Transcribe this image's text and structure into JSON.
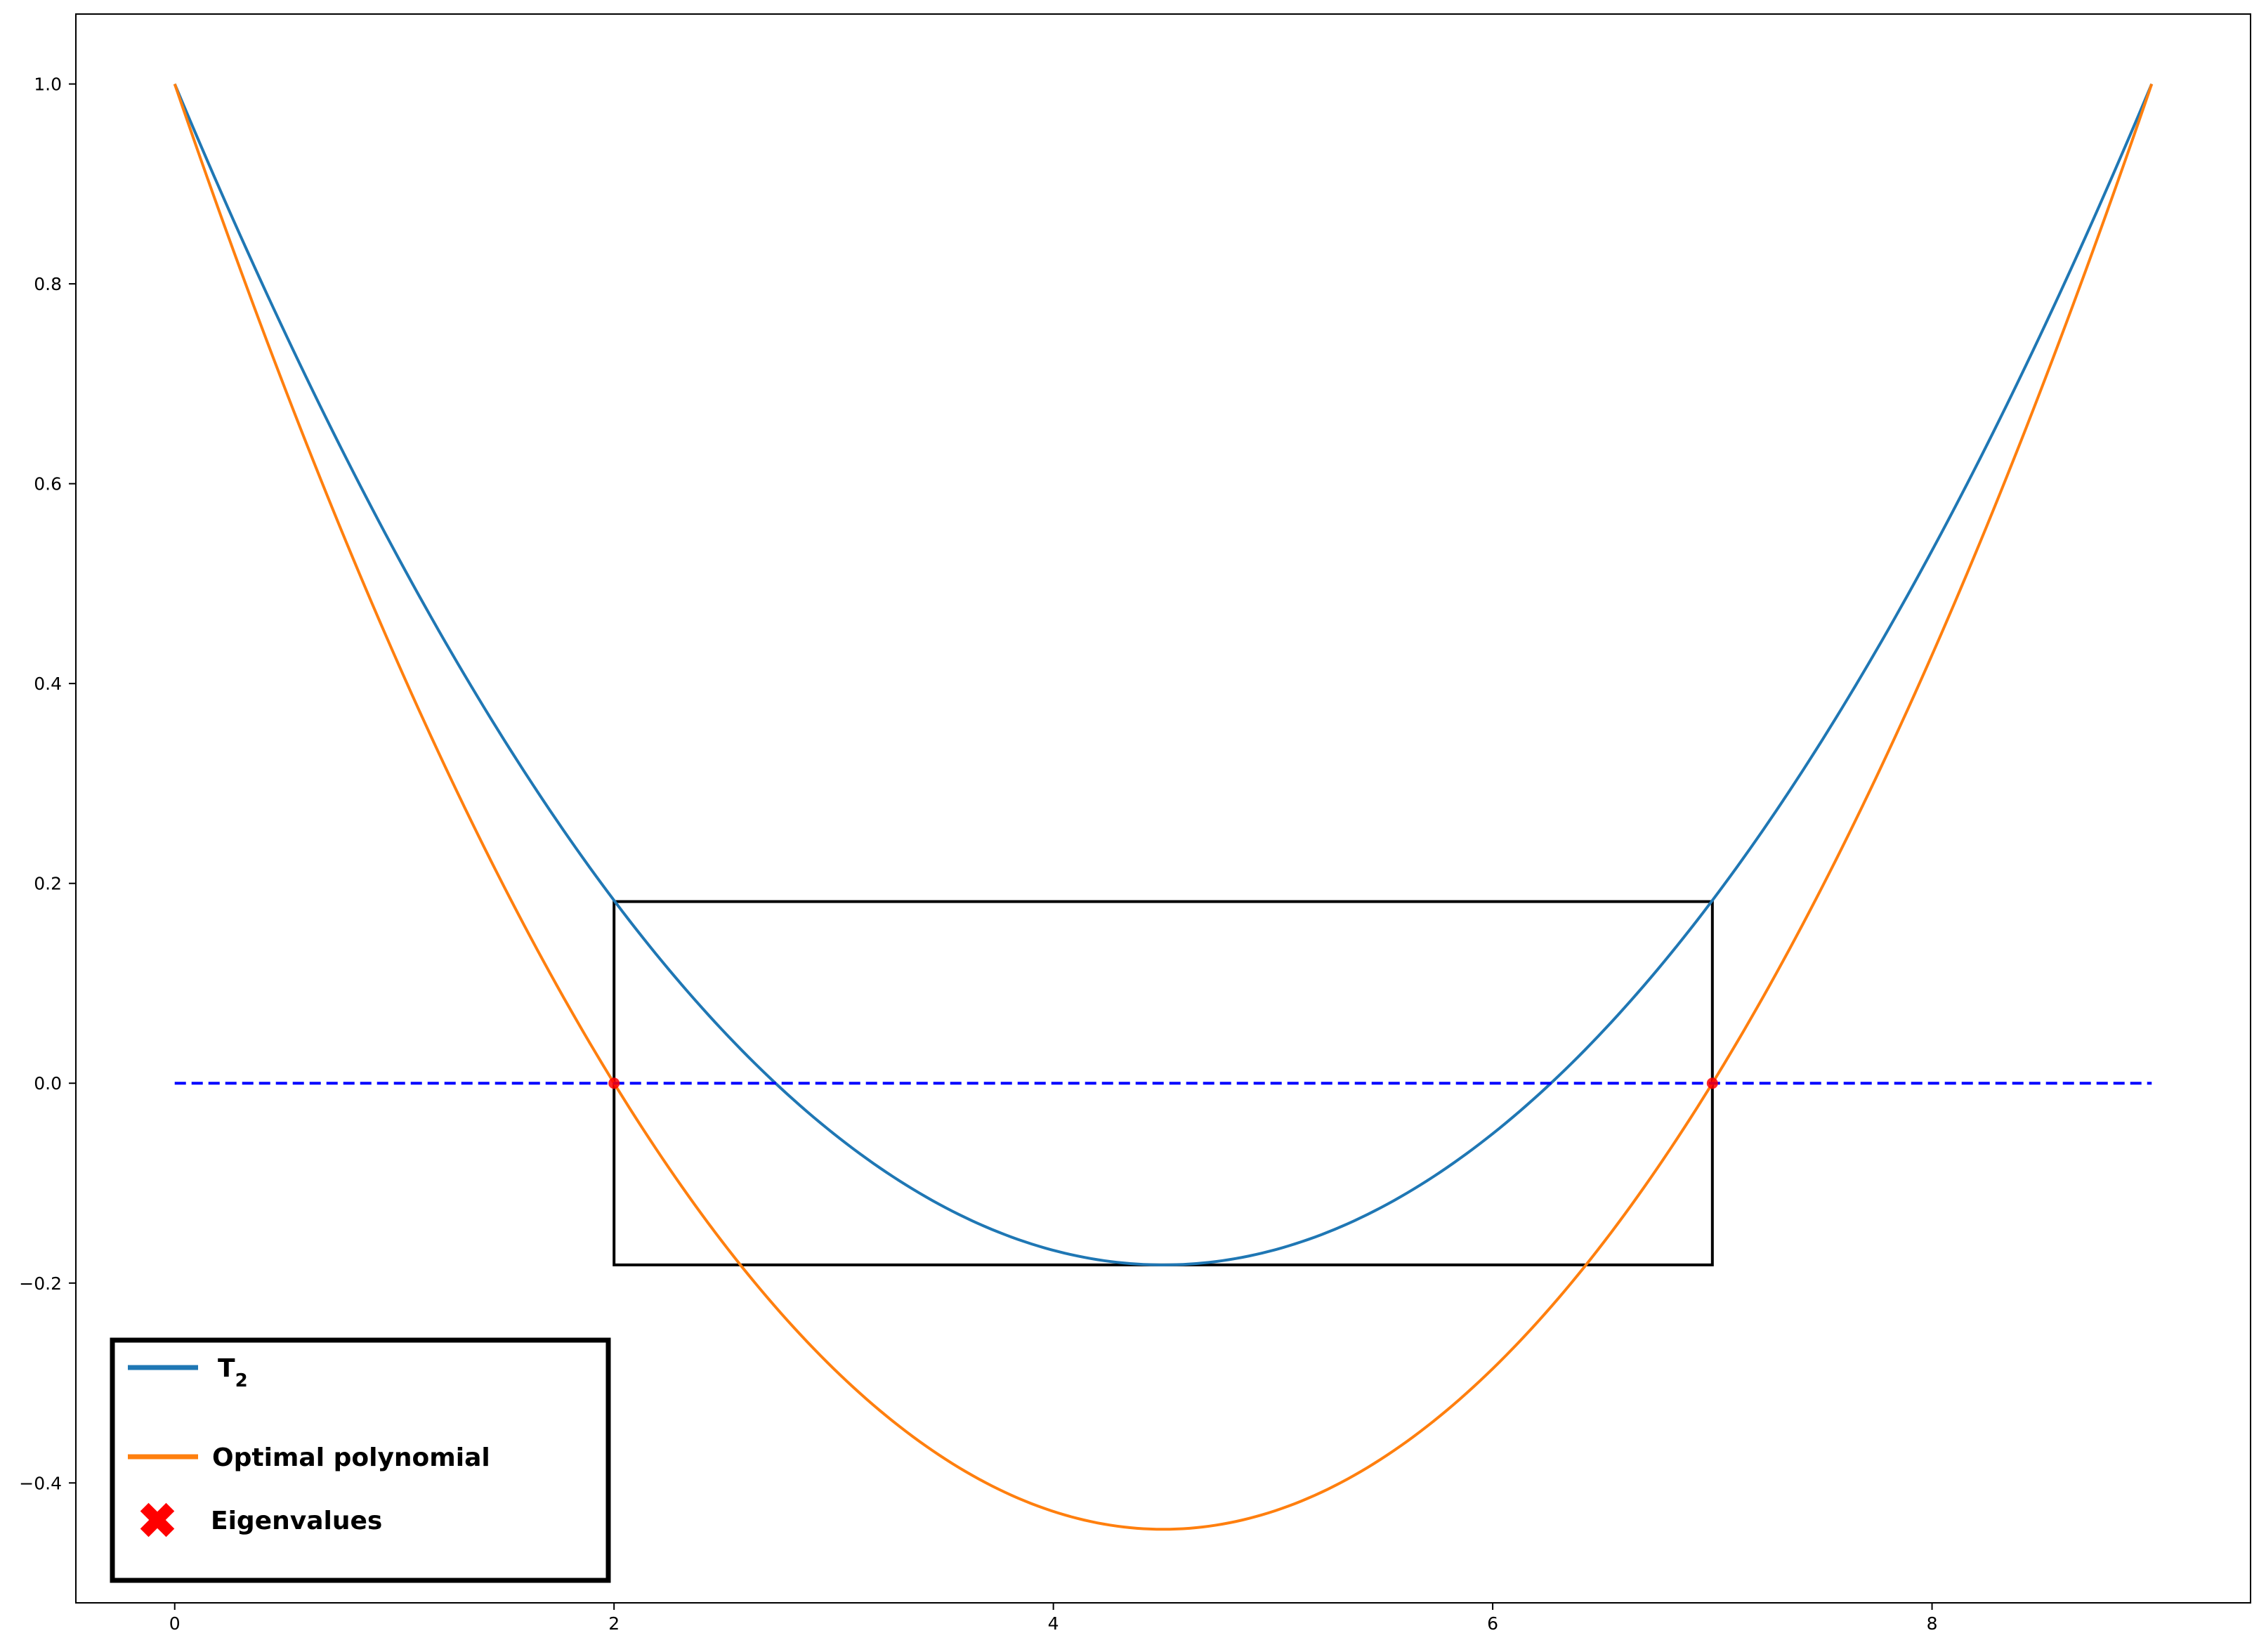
{
  "chart_data": {
    "type": "line",
    "title": "",
    "xlabel": "",
    "ylabel": "",
    "xlim": [
      -0.45,
      9.45
    ],
    "ylim": [
      -0.52,
      1.07
    ],
    "xticks": [
      0,
      2,
      4,
      6,
      8
    ],
    "xtick_labels": [
      "0",
      "2",
      "4",
      "6",
      "8"
    ],
    "yticks": [
      -0.4,
      -0.2,
      0.0,
      0.2,
      0.4,
      0.6,
      0.8,
      1.0
    ],
    "ytick_labels": [
      "−0.4",
      "−0.2",
      "0.0",
      "0.2",
      "0.4",
      "0.6",
      "0.8",
      "1.0"
    ],
    "grid": false,
    "domain": [
      0,
      9
    ],
    "series": [
      {
        "name": "T",
        "name_sub": "2",
        "color": "#1f77b4",
        "style": "solid",
        "description_points": {
          "x": [
            0,
            2,
            4.5,
            7,
            9
          ],
          "y": [
            1.0,
            0.1818,
            -0.1818,
            0.1818,
            1.0
          ]
        }
      },
      {
        "name": "Optimal polynomial",
        "color": "#ff7f0e",
        "style": "solid",
        "description_points": {
          "x": [
            0,
            2,
            4.5,
            7,
            9
          ],
          "y": [
            1.0,
            0.0,
            -0.4464,
            0.0,
            1.0
          ]
        }
      },
      {
        "name": "",
        "color": "#0000ff",
        "style": "dashed",
        "description_points": {
          "x": [
            0,
            9
          ],
          "y": [
            0.0,
            0.0
          ]
        }
      }
    ],
    "markers": {
      "name": "Eigenvalues",
      "color": "#ff0000",
      "symbol": "X",
      "x": [
        2,
        7
      ],
      "y": [
        0,
        0
      ]
    },
    "rectangle": {
      "color": "#000000",
      "x": [
        2,
        7
      ],
      "y": [
        -0.1818,
        0.1818
      ]
    },
    "legend": {
      "placement": "lower-left",
      "entries": [
        "T",
        "Optimal polynomial",
        "Eigenvalues"
      ]
    }
  }
}
